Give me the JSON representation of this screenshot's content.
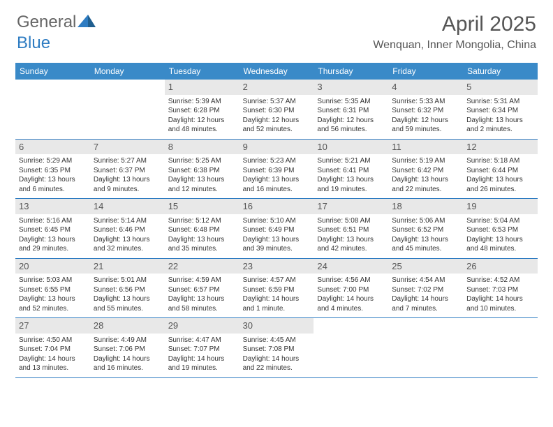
{
  "brand": {
    "part1": "General",
    "part2": "Blue"
  },
  "title": "April 2025",
  "location": "Wenquan, Inner Mongolia, China",
  "colors": {
    "header_bg": "#3a8ac8",
    "header_text": "#ffffff",
    "divider": "#2e7cc2",
    "daynum_bg": "#e8e8e8",
    "text": "#333333",
    "brand_blue": "#2e7cc2"
  },
  "weekdays": [
    "Sunday",
    "Monday",
    "Tuesday",
    "Wednesday",
    "Thursday",
    "Friday",
    "Saturday"
  ],
  "weeks": [
    [
      null,
      null,
      {
        "n": "1",
        "sr": "Sunrise: 5:39 AM",
        "ss": "Sunset: 6:28 PM",
        "dl": "Daylight: 12 hours and 48 minutes."
      },
      {
        "n": "2",
        "sr": "Sunrise: 5:37 AM",
        "ss": "Sunset: 6:30 PM",
        "dl": "Daylight: 12 hours and 52 minutes."
      },
      {
        "n": "3",
        "sr": "Sunrise: 5:35 AM",
        "ss": "Sunset: 6:31 PM",
        "dl": "Daylight: 12 hours and 56 minutes."
      },
      {
        "n": "4",
        "sr": "Sunrise: 5:33 AM",
        "ss": "Sunset: 6:32 PM",
        "dl": "Daylight: 12 hours and 59 minutes."
      },
      {
        "n": "5",
        "sr": "Sunrise: 5:31 AM",
        "ss": "Sunset: 6:34 PM",
        "dl": "Daylight: 13 hours and 2 minutes."
      }
    ],
    [
      {
        "n": "6",
        "sr": "Sunrise: 5:29 AM",
        "ss": "Sunset: 6:35 PM",
        "dl": "Daylight: 13 hours and 6 minutes."
      },
      {
        "n": "7",
        "sr": "Sunrise: 5:27 AM",
        "ss": "Sunset: 6:37 PM",
        "dl": "Daylight: 13 hours and 9 minutes."
      },
      {
        "n": "8",
        "sr": "Sunrise: 5:25 AM",
        "ss": "Sunset: 6:38 PM",
        "dl": "Daylight: 13 hours and 12 minutes."
      },
      {
        "n": "9",
        "sr": "Sunrise: 5:23 AM",
        "ss": "Sunset: 6:39 PM",
        "dl": "Daylight: 13 hours and 16 minutes."
      },
      {
        "n": "10",
        "sr": "Sunrise: 5:21 AM",
        "ss": "Sunset: 6:41 PM",
        "dl": "Daylight: 13 hours and 19 minutes."
      },
      {
        "n": "11",
        "sr": "Sunrise: 5:19 AM",
        "ss": "Sunset: 6:42 PM",
        "dl": "Daylight: 13 hours and 22 minutes."
      },
      {
        "n": "12",
        "sr": "Sunrise: 5:18 AM",
        "ss": "Sunset: 6:44 PM",
        "dl": "Daylight: 13 hours and 26 minutes."
      }
    ],
    [
      {
        "n": "13",
        "sr": "Sunrise: 5:16 AM",
        "ss": "Sunset: 6:45 PM",
        "dl": "Daylight: 13 hours and 29 minutes."
      },
      {
        "n": "14",
        "sr": "Sunrise: 5:14 AM",
        "ss": "Sunset: 6:46 PM",
        "dl": "Daylight: 13 hours and 32 minutes."
      },
      {
        "n": "15",
        "sr": "Sunrise: 5:12 AM",
        "ss": "Sunset: 6:48 PM",
        "dl": "Daylight: 13 hours and 35 minutes."
      },
      {
        "n": "16",
        "sr": "Sunrise: 5:10 AM",
        "ss": "Sunset: 6:49 PM",
        "dl": "Daylight: 13 hours and 39 minutes."
      },
      {
        "n": "17",
        "sr": "Sunrise: 5:08 AM",
        "ss": "Sunset: 6:51 PM",
        "dl": "Daylight: 13 hours and 42 minutes."
      },
      {
        "n": "18",
        "sr": "Sunrise: 5:06 AM",
        "ss": "Sunset: 6:52 PM",
        "dl": "Daylight: 13 hours and 45 minutes."
      },
      {
        "n": "19",
        "sr": "Sunrise: 5:04 AM",
        "ss": "Sunset: 6:53 PM",
        "dl": "Daylight: 13 hours and 48 minutes."
      }
    ],
    [
      {
        "n": "20",
        "sr": "Sunrise: 5:03 AM",
        "ss": "Sunset: 6:55 PM",
        "dl": "Daylight: 13 hours and 52 minutes."
      },
      {
        "n": "21",
        "sr": "Sunrise: 5:01 AM",
        "ss": "Sunset: 6:56 PM",
        "dl": "Daylight: 13 hours and 55 minutes."
      },
      {
        "n": "22",
        "sr": "Sunrise: 4:59 AM",
        "ss": "Sunset: 6:57 PM",
        "dl": "Daylight: 13 hours and 58 minutes."
      },
      {
        "n": "23",
        "sr": "Sunrise: 4:57 AM",
        "ss": "Sunset: 6:59 PM",
        "dl": "Daylight: 14 hours and 1 minute."
      },
      {
        "n": "24",
        "sr": "Sunrise: 4:56 AM",
        "ss": "Sunset: 7:00 PM",
        "dl": "Daylight: 14 hours and 4 minutes."
      },
      {
        "n": "25",
        "sr": "Sunrise: 4:54 AM",
        "ss": "Sunset: 7:02 PM",
        "dl": "Daylight: 14 hours and 7 minutes."
      },
      {
        "n": "26",
        "sr": "Sunrise: 4:52 AM",
        "ss": "Sunset: 7:03 PM",
        "dl": "Daylight: 14 hours and 10 minutes."
      }
    ],
    [
      {
        "n": "27",
        "sr": "Sunrise: 4:50 AM",
        "ss": "Sunset: 7:04 PM",
        "dl": "Daylight: 14 hours and 13 minutes."
      },
      {
        "n": "28",
        "sr": "Sunrise: 4:49 AM",
        "ss": "Sunset: 7:06 PM",
        "dl": "Daylight: 14 hours and 16 minutes."
      },
      {
        "n": "29",
        "sr": "Sunrise: 4:47 AM",
        "ss": "Sunset: 7:07 PM",
        "dl": "Daylight: 14 hours and 19 minutes."
      },
      {
        "n": "30",
        "sr": "Sunrise: 4:45 AM",
        "ss": "Sunset: 7:08 PM",
        "dl": "Daylight: 14 hours and 22 minutes."
      },
      null,
      null,
      null
    ]
  ]
}
